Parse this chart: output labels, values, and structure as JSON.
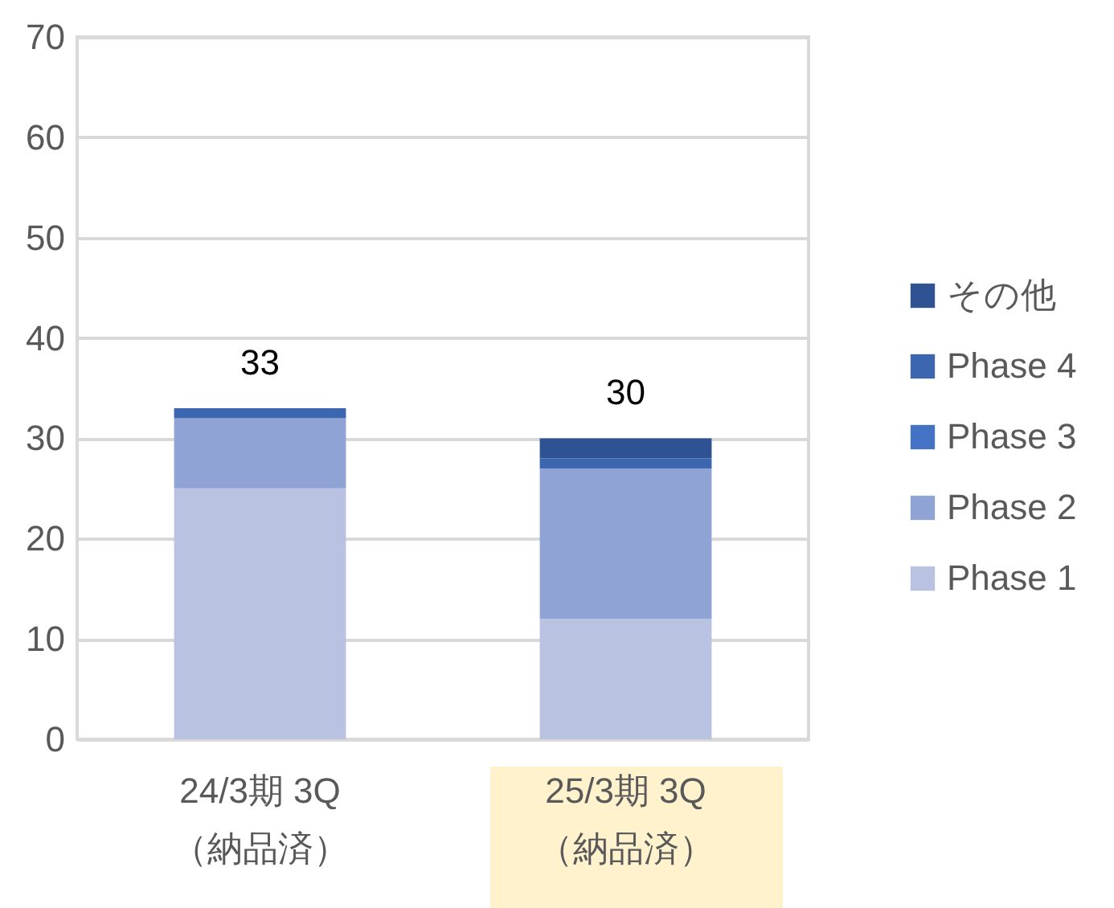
{
  "chart_data": {
    "type": "bar",
    "stacked": true,
    "categories": [
      "24/3期 3Q\n（納品済）",
      "25/3期 3Q\n（納品済）"
    ],
    "series": [
      {
        "name": "Phase 1",
        "color": "#b9c3e1",
        "values": [
          25,
          12
        ]
      },
      {
        "name": "Phase 2",
        "color": "#8fa3d4",
        "values": [
          7,
          15
        ]
      },
      {
        "name": "Phase 3",
        "color": "#4472c4",
        "values": [
          0,
          0
        ]
      },
      {
        "name": "Phase 4",
        "color": "#3d66b0",
        "values": [
          1,
          1
        ]
      },
      {
        "name": "その他",
        "color": "#2f5392",
        "values": [
          0,
          2
        ]
      }
    ],
    "totals": [
      "33",
      "30"
    ],
    "ylim": [
      0,
      70
    ],
    "yticks": [
      0,
      10,
      20,
      30,
      40,
      50,
      60,
      70
    ],
    "grid": "y",
    "legend": "right"
  }
}
